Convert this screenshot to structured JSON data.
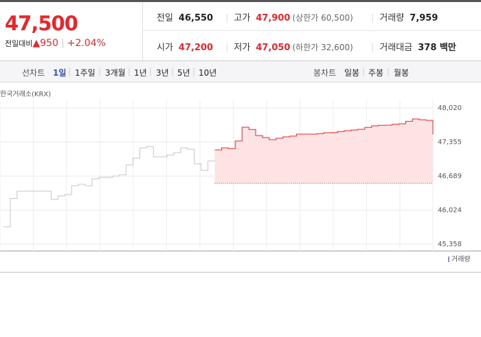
{
  "price": {
    "current": "47,500",
    "change_label": "전일대비",
    "change": "950",
    "change_rate": "+2.04%"
  },
  "stats": [
    [
      {
        "label": "전일",
        "value": "46,550"
      },
      {
        "label": "고가",
        "value": "47,900",
        "note": "(상한가 60,500)"
      },
      {
        "label": "거래량",
        "value": "7,959"
      }
    ],
    [
      {
        "label": "시가",
        "value": "47,200"
      },
      {
        "label": "저가",
        "value": "47,050",
        "note": "(하한가 32,600)"
      },
      {
        "label": "거래대금",
        "value": "378 백만"
      }
    ]
  ],
  "tabs": {
    "line_label": "선차트",
    "line": [
      "1일",
      "1주일",
      "3개월",
      "1년",
      "3년",
      "5년",
      "10년"
    ],
    "candle_label": "봉차트",
    "candle": [
      "일봉",
      "주봉",
      "월봉"
    ]
  },
  "chart_data": {
    "type": "line",
    "source": "한국거래소(KRX)",
    "categories": [
      null,
      null,
      null,
      null,
      null,
      null,
      null,
      null,
      null,
      null,
      null,
      null,
      null,
      null,
      null,
      null,
      null,
      null,
      null,
      null,
      null,
      null,
      null,
      null,
      null,
      null,
      null,
      null,
      null,
      null,
      null,
      null,
      null,
      null,
      null,
      null,
      null,
      null,
      null,
      null,
      null,
      null,
      null,
      null,
      null,
      null,
      null,
      null,
      null,
      null,
      null,
      null,
      null,
      null,
      null,
      null,
      null,
      null,
      null,
      null,
      null,
      null,
      null,
      null
    ],
    "series": [
      {
        "color": "#c4c4c4",
        "values": [
          45695,
          46250,
          46394,
          46394,
          46394,
          46394,
          46394,
          46232,
          46300,
          46327,
          46501,
          46528,
          46501,
          46636,
          46663,
          46663,
          46689,
          46716,
          46905,
          47039,
          47240,
          47267,
          47066,
          47066,
          47100,
          47146,
          47240,
          47213,
          46931,
          46800,
          46985,
          47012,
          null,
          null,
          null,
          null,
          null,
          null,
          null,
          null,
          null,
          null,
          null,
          null,
          null,
          null,
          null,
          null,
          null,
          null,
          null,
          null,
          null,
          null,
          null,
          null,
          null,
          null,
          null,
          null,
          null,
          null,
          null,
          null
        ]
      },
      {
        "color": "#e8262b",
        "values": [
          null,
          null,
          null,
          null,
          null,
          null,
          null,
          null,
          null,
          null,
          null,
          null,
          null,
          null,
          null,
          null,
          null,
          null,
          null,
          null,
          null,
          null,
          null,
          null,
          null,
          null,
          null,
          null,
          null,
          null,
          null,
          47200,
          47240,
          47226,
          47375,
          47643,
          47600,
          47480,
          47442,
          47402,
          47430,
          47455,
          47470,
          47509,
          47509,
          47509,
          47520,
          47536,
          47540,
          47560,
          47576,
          47590,
          47603,
          47640,
          47670,
          47680,
          47684,
          47700,
          47711,
          47760,
          47805,
          47790,
          47778,
          47500
        ]
      }
    ],
    "baseline": 46550,
    "fill_color": "#fde3e3",
    "ylim": [
      45358,
      48020
    ],
    "yticks": [
      {
        "value": 48020,
        "label": "48,020"
      },
      {
        "value": 47355,
        "label": "47,355"
      },
      {
        "value": 46689,
        "label": "46,689"
      },
      {
        "value": 46024,
        "label": "46,024"
      },
      {
        "value": 45358,
        "label": "45,358"
      }
    ],
    "grid": true,
    "volume_label": "거래량"
  }
}
